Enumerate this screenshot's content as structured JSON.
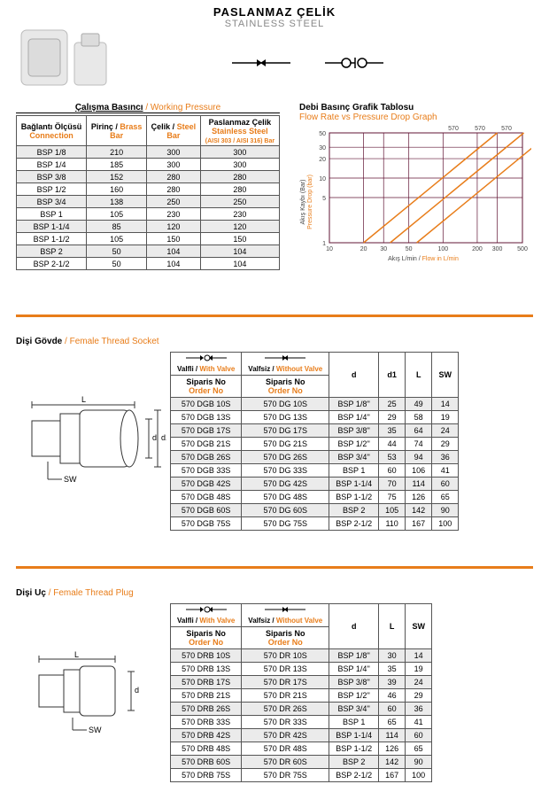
{
  "material": {
    "tr": "PASLANMAZ ÇELİK",
    "en": "STAINLESS STEEL"
  },
  "pressure_table": {
    "caption_tr": "Çalışma Basıncı",
    "caption_en": " / Working Pressure",
    "head": {
      "c1_tr": "Bağlantı Ölçüsü",
      "c1_en": "Connection",
      "c2_tr": "Pirinç / ",
      "c2_en": "Brass",
      "c2_u": "Bar",
      "c3_tr": "Çelik / ",
      "c3_en": "Steel",
      "c3_u": "Bar",
      "c4_tr": "Paslanmaz Çelik",
      "c4_en": "Stainless Steel",
      "c4_ex": "(AISI 303 / AISI 316) Bar"
    },
    "rows": [
      [
        "BSP 1/8",
        "210",
        "300",
        "300"
      ],
      [
        "BSP 1/4",
        "185",
        "300",
        "300"
      ],
      [
        "BSP 3/8",
        "152",
        "280",
        "280"
      ],
      [
        "BSP 1/2",
        "160",
        "280",
        "280"
      ],
      [
        "BSP 3/4",
        "138",
        "250",
        "250"
      ],
      [
        "BSP 1",
        "105",
        "230",
        "230"
      ],
      [
        "BSP 1-1/4",
        "85",
        "120",
        "120"
      ],
      [
        "BSP 1-1/2",
        "105",
        "150",
        "150"
      ],
      [
        "BSP 2",
        "50",
        "104",
        "104"
      ],
      [
        "BSP 2-1/2",
        "50",
        "104",
        "104"
      ]
    ]
  },
  "chart": {
    "title_tr": "Debi Basınç Grafik Tablosu",
    "title_en": "Flow Rate vs Pressure Drop Graph",
    "xlabel_tr": "Akış L/min / ",
    "xlabel_en": "Flow in L/min",
    "ylabel_tr": "Akış Kaybı (Bar)",
    "ylabel_en": "Pressure Drop (bar)",
    "xticks": [
      "10",
      "20",
      "30",
      "50",
      "100",
      "200",
      "300",
      "500"
    ],
    "yticks": [
      "1",
      "5",
      "10",
      "20",
      "30",
      "50"
    ],
    "topticks": [
      "570",
      "570",
      "570"
    ],
    "grid_color": "#601434",
    "curve_color": "#e87d1a",
    "bg": "#ffffff"
  },
  "socket": {
    "label_tr": "Dişi Gövde",
    "label_en": " / Female Thread Socket",
    "head": {
      "v1_tr": "Valfli / ",
      "v1_en": "With Valve",
      "v2_tr": "Valfsiz / ",
      "v2_en": "Without Valve",
      "ord_tr": "Siparis No",
      "ord_en": "Order No",
      "d": "d",
      "d1": "d1",
      "L": "L",
      "SW": "SW"
    },
    "rows": [
      [
        "570 DGB 10S",
        "570 DG 10S",
        "BSP 1/8''",
        "25",
        "49",
        "14"
      ],
      [
        "570 DGB 13S",
        "570 DG 13S",
        "BSP 1/4''",
        "29",
        "58",
        "19"
      ],
      [
        "570 DGB 17S",
        "570 DG 17S",
        "BSP 3/8''",
        "35",
        "64",
        "24"
      ],
      [
        "570 DGB 21S",
        "570 DG 21S",
        "BSP 1/2''",
        "44",
        "74",
        "29"
      ],
      [
        "570 DGB 26S",
        "570 DG 26S",
        "BSP 3/4''",
        "53",
        "94",
        "36"
      ],
      [
        "570 DGB 33S",
        "570 DG 33S",
        "BSP 1",
        "60",
        "106",
        "41"
      ],
      [
        "570 DGB 42S",
        "570 DG 42S",
        "BSP 1-1/4",
        "70",
        "114",
        "60"
      ],
      [
        "570 DGB 48S",
        "570 DG 48S",
        "BSP 1-1/2",
        "75",
        "126",
        "65"
      ],
      [
        "570 DGB 60S",
        "570 DG 60S",
        "BSP 2",
        "105",
        "142",
        "90"
      ],
      [
        "570 DGB 75S",
        "570 DG 75S",
        "BSP 2-1/2",
        "110",
        "167",
        "100"
      ]
    ],
    "diag": {
      "L": "L",
      "d": "d",
      "d1": "d1",
      "SW": "SW"
    }
  },
  "plug": {
    "label_tr": "Dişi Uç",
    "label_en": " / Female Thread Plug",
    "head": {
      "v1_tr": "Valfli / ",
      "v1_en": "With Valve",
      "v2_tr": "Valfsiz / ",
      "v2_en": "Without Valve",
      "ord_tr": "Siparis No",
      "ord_en": "Order No",
      "d": "d",
      "L": "L",
      "SW": "SW"
    },
    "rows": [
      [
        "570 DRB 10S",
        "570 DR 10S",
        "BSP 1/8''",
        "30",
        "14"
      ],
      [
        "570 DRB 13S",
        "570 DR 13S",
        "BSP 1/4''",
        "35",
        "19"
      ],
      [
        "570 DRB 17S",
        "570 DR 17S",
        "BSP 3/8''",
        "39",
        "24"
      ],
      [
        "570 DRB 21S",
        "570 DR 21S",
        "BSP 1/2''",
        "46",
        "29"
      ],
      [
        "570 DRB 26S",
        "570 DR 26S",
        "BSP 3/4''",
        "60",
        "36"
      ],
      [
        "570 DRB 33S",
        "570 DR 33S",
        "BSP 1",
        "65",
        "41"
      ],
      [
        "570 DRB 42S",
        "570 DR 42S",
        "BSP 1-1/4",
        "114",
        "60"
      ],
      [
        "570 DRB 48S",
        "570 DR 48S",
        "BSP 1-1/2",
        "126",
        "65"
      ],
      [
        "570 DRB 60S",
        "570 DR 60S",
        "BSP 2",
        "142",
        "90"
      ],
      [
        "570 DRB 75S",
        "570 DR 75S",
        "BSP 2-1/2",
        "167",
        "100"
      ]
    ],
    "diag": {
      "L": "L",
      "d": "d",
      "SW": "SW"
    }
  }
}
